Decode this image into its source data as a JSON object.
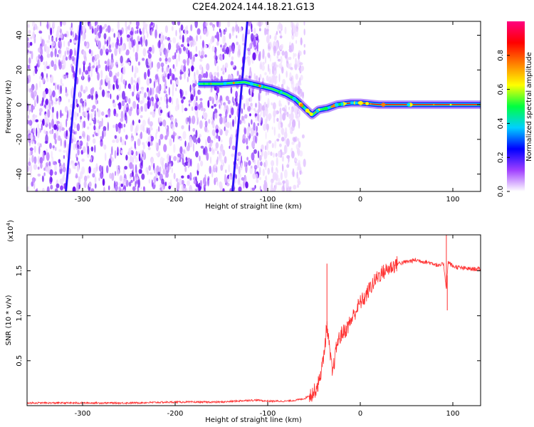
{
  "title": "C2E4.2024.144.18.21.G13",
  "chart_data": [
    {
      "type": "heatmap",
      "xlabel": "Height of straight line (km)",
      "ylabel": "Frequency (Hz)",
      "xlim": [
        -360,
        130
      ],
      "ylim": [
        -50,
        48
      ],
      "x_ticks": [
        -300,
        -200,
        -100,
        0,
        100
      ],
      "x_tick_labels": [
        "-300",
        "-200",
        "-100",
        "0",
        "100"
      ],
      "y_ticks": [
        -40,
        -20,
        0,
        20,
        40
      ],
      "y_tick_labels": [
        "-40",
        "-20",
        "0",
        "20",
        "40"
      ],
      "colorbar": {
        "label": "Normalized spectral amplitude",
        "range": [
          0,
          1
        ],
        "ticks": [
          0.0,
          0.2,
          0.4,
          0.6,
          0.8
        ],
        "tick_labels": [
          "0.0",
          "0.2",
          "0.4",
          "0.6",
          "0.8"
        ],
        "colors": [
          "#ffffff",
          "#a040ff",
          "#0000ff",
          "#00d0ff",
          "#00ff40",
          "#ffff00",
          "#ff8000",
          "#ff0000",
          "#ff0080"
        ]
      },
      "noise_region_x": [
        -360,
        -80
      ],
      "signal_trace": {
        "x": [
          -175,
          -150,
          -125,
          -110,
          -95,
          -80,
          -70,
          -60,
          -52,
          -45,
          -35,
          -25,
          -10,
          0,
          20,
          60,
          100,
          130
        ],
        "y": [
          12,
          12,
          13,
          11,
          9,
          6,
          3,
          -2,
          -6,
          -3,
          -2,
          0,
          1,
          1,
          0,
          0,
          0,
          0
        ]
      },
      "streaks": [
        {
          "x": [
            -318,
            -302
          ],
          "y": [
            -50,
            48
          ]
        },
        {
          "x": [
            -138,
            -122
          ],
          "y": [
            -50,
            48
          ]
        }
      ]
    },
    {
      "type": "line",
      "xlabel": "Height of straight line (km)",
      "ylabel": "SNR (10 * v/v)",
      "scale_label": "(x10",
      "scale_exp": "4",
      "scale_close": ")",
      "xlim": [
        -360,
        130
      ],
      "ylim": [
        0,
        1.9
      ],
      "x_ticks": [
        -300,
        -200,
        -100,
        0,
        100
      ],
      "x_tick_labels": [
        "-300",
        "-200",
        "-100",
        "0",
        "100"
      ],
      "y_ticks": [
        0.5,
        1.0,
        1.5
      ],
      "y_tick_labels": [
        "0.5",
        "1.0",
        "1.5"
      ],
      "color": "#ff3030",
      "series": [
        {
          "x": [
            -360,
            -300,
            -250,
            -200,
            -150,
            -120,
            -110,
            -100,
            -90,
            -80,
            -70,
            -60,
            -50,
            -45,
            -40,
            -36,
            -33,
            -30,
            -25,
            -20,
            -15,
            -10,
            -5,
            0,
            5,
            10,
            20,
            30,
            40,
            50,
            60,
            70,
            80,
            85,
            90,
            93,
            95,
            100,
            110,
            120,
            130
          ],
          "y": [
            0.03,
            0.03,
            0.03,
            0.04,
            0.04,
            0.06,
            0.06,
            0.05,
            0.05,
            0.05,
            0.06,
            0.08,
            0.15,
            0.25,
            0.5,
            0.9,
            0.6,
            0.35,
            0.7,
            0.8,
            0.85,
            0.95,
            1.05,
            1.15,
            1.2,
            1.3,
            1.45,
            1.52,
            1.58,
            1.6,
            1.62,
            1.6,
            1.58,
            1.55,
            1.58,
            1.3,
            1.6,
            1.55,
            1.53,
            1.52,
            1.52
          ]
        }
      ],
      "spikes": [
        {
          "x": -36,
          "y": 1.58
        },
        {
          "x": 93,
          "y": 1.93
        },
        {
          "x": 94,
          "y": 1.06
        }
      ]
    }
  ]
}
